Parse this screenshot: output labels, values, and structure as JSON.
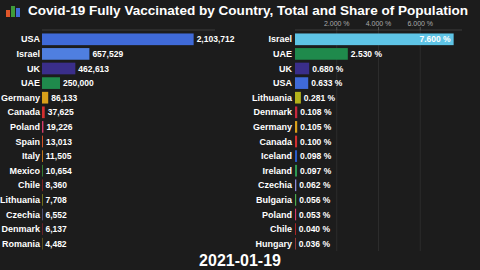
{
  "title": "Covid-19 Fully Vaccinated by Country, Total and Share of Population",
  "date": "2021-01-19",
  "chart_data": [
    {
      "type": "bar",
      "orientation": "horizontal",
      "data_labels": true,
      "grid": false,
      "tick_labels": "y",
      "categories": [
        "USA",
        "Israel",
        "UK",
        "UAE",
        "Germany",
        "Canada",
        "Poland",
        "Spain",
        "Italy",
        "Mexico",
        "Chile",
        "Lithuania",
        "Czechia",
        "Denmark",
        "Romania"
      ],
      "values": [
        2103712,
        657529,
        462613,
        250000,
        86133,
        37625,
        19226,
        13013,
        11505,
        10654,
        8360,
        7708,
        6552,
        6137,
        4482
      ],
      "value_labels": [
        "2,103,712",
        "657,529",
        "462,613",
        "250,000",
        "86,133",
        "37,625",
        "19,226",
        "13,013",
        "11,505",
        "10,654",
        "8,360",
        "7,708",
        "6,552",
        "6,137",
        "4,482"
      ],
      "colors": [
        "#3f6ad8",
        "#4f7fe0",
        "#3a2e8a",
        "#1f8a4c",
        "#d8a01a",
        "#d32f2f",
        "#d63b6a",
        "#e0562a",
        "#e88a1c",
        "#3f9b3a",
        "#c62828",
        "#b3b21a",
        "#8a8ad8",
        "#c8283c",
        "#e0b81a"
      ],
      "xlim": [
        0,
        2400000
      ]
    },
    {
      "type": "bar",
      "orientation": "horizontal",
      "data_labels": true,
      "grid": true,
      "categories": [
        "Israel",
        "UAE",
        "UK",
        "USA",
        "Lithuania",
        "Denmark",
        "Germany",
        "Canada",
        "Iceland",
        "Ireland",
        "Czechia",
        "Bulgaria",
        "Poland",
        "Chile",
        "Hungary"
      ],
      "values": [
        7.6,
        2.53,
        0.68,
        0.633,
        0.281,
        0.108,
        0.105,
        0.1,
        0.098,
        0.097,
        0.062,
        0.056,
        0.053,
        0.04,
        0.036
      ],
      "value_labels": [
        "7.600 %",
        "2.530 %",
        "0.680 %",
        "0.633 %",
        "0.281 %",
        "0.108 %",
        "0.105 %",
        "0.100 %",
        "0.098 %",
        "0.097 %",
        "0.062 %",
        "0.056 %",
        "0.053 %",
        "0.040 %",
        "0.036 %"
      ],
      "colors": [
        "#5ec4e6",
        "#1f8a4c",
        "#3a2e8a",
        "#3f6ad8",
        "#b3b21a",
        "#c8283c",
        "#d8a01a",
        "#d32f2f",
        "#2a5bc8",
        "#2e9a52",
        "#8a8ad8",
        "#4caf50",
        "#d63b6a",
        "#c62828",
        "#b84040"
      ],
      "xlim": [
        0,
        8
      ],
      "xticks": [
        {
          "value": 2,
          "label": "2.000 %"
        },
        {
          "value": 4,
          "label": "4.000 %"
        },
        {
          "value": 6,
          "label": "6.000 %"
        }
      ]
    }
  ]
}
